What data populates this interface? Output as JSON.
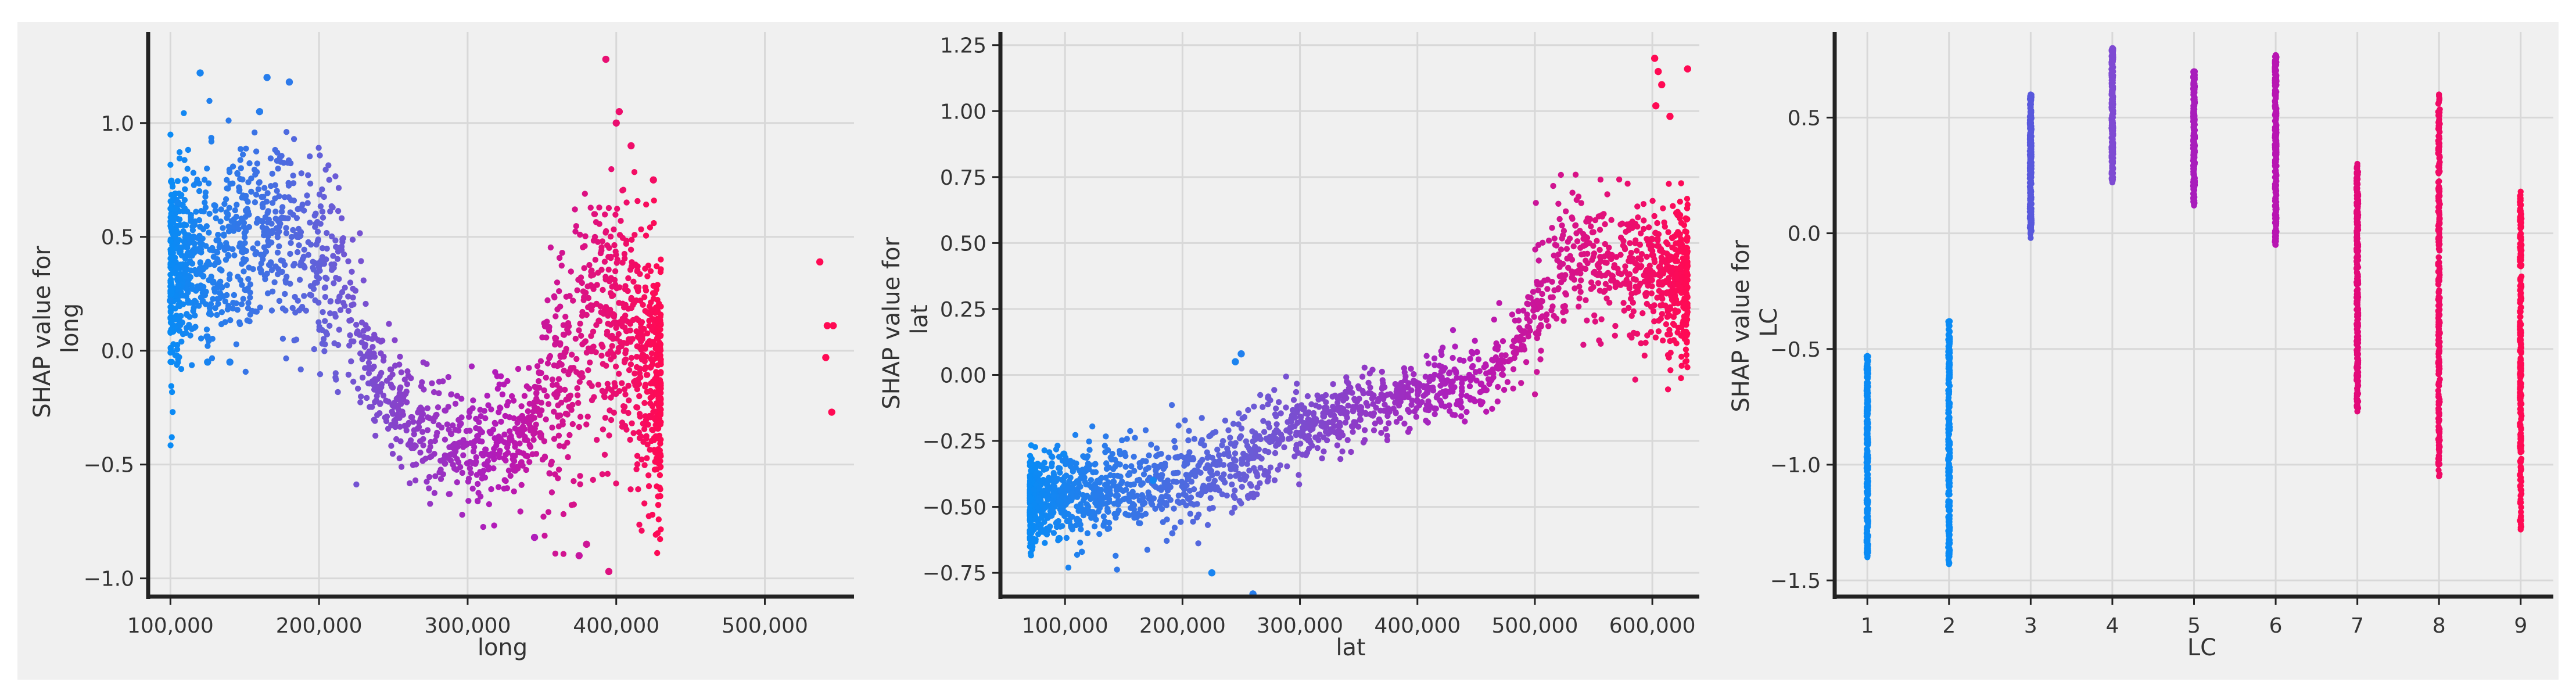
{
  "figure": {
    "background_color": "#f0f0f0",
    "plot_background_color": "#f0f0f0",
    "grid_color": "#d8d8d8",
    "axis_color": "#222222",
    "colormap": [
      "#0a8bf5",
      "#6a5cd6",
      "#b31ab8",
      "#ff0a54"
    ]
  },
  "chart_data": [
    {
      "type": "scatter",
      "title": "",
      "xlabel": "long",
      "ylabel": "SHAP value for\nlong",
      "xlim": [
        85000,
        560000
      ],
      "ylim": [
        -1.08,
        1.4
      ],
      "xticks": [
        100000,
        200000,
        300000,
        400000,
        500000
      ],
      "xtick_labels": [
        "100,000",
        "200,000",
        "300,000",
        "400,000",
        "500,000"
      ],
      "yticks": [
        -1.0,
        -0.5,
        0.0,
        0.5,
        1.0
      ],
      "ytick_labels": [
        "−1.0",
        "−0.5",
        "0.0",
        "0.5",
        "1.0"
      ],
      "grid": true,
      "color_by": "feature value (blue = low, pink = high)",
      "trend": [
        [
          100000,
          0.35
        ],
        [
          150000,
          0.45
        ],
        [
          180000,
          0.5
        ],
        [
          210000,
          0.3
        ],
        [
          240000,
          -0.15
        ],
        [
          270000,
          -0.35
        ],
        [
          300000,
          -0.45
        ],
        [
          330000,
          -0.4
        ],
        [
          360000,
          -0.15
        ],
        [
          380000,
          0.1
        ],
        [
          400000,
          0.15
        ],
        [
          430000,
          -0.2
        ]
      ],
      "points": [
        {
          "x": 120000,
          "y": 1.22,
          "c": 0.05
        },
        {
          "x": 165000,
          "y": 1.2,
          "c": 0.1
        },
        {
          "x": 180000,
          "y": 1.18,
          "c": 0.12
        },
        {
          "x": 160000,
          "y": 1.05,
          "c": 0.1
        },
        {
          "x": 110000,
          "y": 0.75,
          "c": 0.05
        },
        {
          "x": 100000,
          "y": 0.22,
          "c": 0.02
        },
        {
          "x": 105000,
          "y": 0.65,
          "c": 0.03
        },
        {
          "x": 125000,
          "y": -0.05,
          "c": 0.05
        },
        {
          "x": 140000,
          "y": -0.05,
          "c": 0.08
        },
        {
          "x": 393000,
          "y": 1.28,
          "c": 0.9
        },
        {
          "x": 402000,
          "y": 1.05,
          "c": 0.92
        },
        {
          "x": 400000,
          "y": 1.0,
          "c": 0.91
        },
        {
          "x": 410000,
          "y": 0.9,
          "c": 0.93
        },
        {
          "x": 375000,
          "y": -0.9,
          "c": 0.75
        },
        {
          "x": 395000,
          "y": -0.97,
          "c": 0.85
        },
        {
          "x": 380000,
          "y": -0.85,
          "c": 0.78
        },
        {
          "x": 345000,
          "y": -0.82,
          "c": 0.65
        },
        {
          "x": 425000,
          "y": 0.75,
          "c": 0.95
        },
        {
          "x": 537000,
          "y": 0.39,
          "c": 1.0
        },
        {
          "x": 542000,
          "y": 0.11,
          "c": 1.0
        },
        {
          "x": 546000,
          "y": 0.11,
          "c": 1.0
        },
        {
          "x": 541000,
          "y": -0.03,
          "c": 1.0
        },
        {
          "x": 545000,
          "y": -0.27,
          "c": 1.0
        }
      ]
    },
    {
      "type": "scatter",
      "title": "",
      "xlabel": "lat",
      "ylabel": "SHAP value for\nlat",
      "xlim": [
        45000,
        640000
      ],
      "ylim": [
        -0.84,
        1.3
      ],
      "xticks": [
        100000,
        200000,
        300000,
        400000,
        500000,
        600000
      ],
      "xtick_labels": [
        "100,000",
        "200,000",
        "300,000",
        "400,000",
        "500,000",
        "600,000"
      ],
      "yticks": [
        -0.75,
        -0.5,
        -0.25,
        0.0,
        0.25,
        0.5,
        0.75,
        1.0,
        1.25
      ],
      "ytick_labels": [
        "−0.75",
        "−0.50",
        "−0.25",
        "0.00",
        "0.25",
        "0.50",
        "0.75",
        "1.00",
        "1.25"
      ],
      "grid": true,
      "color_by": "feature value (blue = low, pink = high)",
      "trend": [
        [
          70000,
          -0.48
        ],
        [
          100000,
          -0.45
        ],
        [
          180000,
          -0.42
        ],
        [
          230000,
          -0.38
        ],
        [
          260000,
          -0.3
        ],
        [
          300000,
          -0.2
        ],
        [
          350000,
          -0.13
        ],
        [
          400000,
          -0.08
        ],
        [
          450000,
          -0.02
        ],
        [
          480000,
          0.08
        ],
        [
          500000,
          0.25
        ],
        [
          530000,
          0.45
        ],
        [
          560000,
          0.42
        ],
        [
          600000,
          0.4
        ],
        [
          630000,
          0.35
        ]
      ],
      "points": [
        {
          "x": 602000,
          "y": 1.2,
          "c": 1.0
        },
        {
          "x": 605000,
          "y": 1.15,
          "c": 1.0
        },
        {
          "x": 630000,
          "y": 1.16,
          "c": 1.0
        },
        {
          "x": 608000,
          "y": 1.1,
          "c": 1.0
        },
        {
          "x": 603000,
          "y": 1.02,
          "c": 1.0
        },
        {
          "x": 615000,
          "y": 0.98,
          "c": 1.0
        },
        {
          "x": 260000,
          "y": -0.83,
          "c": 0.1
        },
        {
          "x": 250000,
          "y": 0.08,
          "c": 0.08
        },
        {
          "x": 225000,
          "y": -0.75,
          "c": 0.05
        },
        {
          "x": 245000,
          "y": 0.05,
          "c": 0.06
        },
        {
          "x": 99000,
          "y": -0.3,
          "c": 0.02
        },
        {
          "x": 95000,
          "y": -0.62,
          "c": 0.02
        },
        {
          "x": 175000,
          "y": -0.4,
          "c": 0.03
        }
      ]
    },
    {
      "type": "scatter",
      "title": "",
      "xlabel": "LC",
      "ylabel": "SHAP value for\nLC",
      "xlim": [
        0.6,
        9.4
      ],
      "ylim": [
        -1.57,
        0.87
      ],
      "xticks": [
        1,
        2,
        3,
        4,
        5,
        6,
        7,
        8,
        9
      ],
      "xtick_labels": [
        "1",
        "2",
        "3",
        "4",
        "5",
        "6",
        "7",
        "8",
        "9"
      ],
      "yticks": [
        -1.5,
        -1.0,
        -0.5,
        0.0,
        0.5
      ],
      "ytick_labels": [
        "−1.5",
        "−1.0",
        "−0.5",
        "0.0",
        "0.5"
      ],
      "grid": true,
      "color_by": "feature value (blue = low, pink = high)",
      "columns": [
        {
          "x": 1,
          "ymin": -1.4,
          "ymax": -0.53,
          "color": "#0a8bf5"
        },
        {
          "x": 2,
          "ymin": -1.43,
          "ymax": -0.38,
          "color": "#0a8bf5"
        },
        {
          "x": 3,
          "ymin": -0.02,
          "ymax": 0.6,
          "color": "#5858dc"
        },
        {
          "x": 4,
          "ymin": 0.22,
          "ymax": 0.8,
          "color": "#7e4ad2"
        },
        {
          "x": 5,
          "ymin": 0.12,
          "ymax": 0.7,
          "color": "#a81dbb"
        },
        {
          "x": 6,
          "ymin": -0.05,
          "ymax": 0.77,
          "color": "#b815b2"
        },
        {
          "x": 7,
          "ymin": -0.77,
          "ymax": 0.3,
          "color": "#e20a7a"
        },
        {
          "x": 8,
          "ymin": -1.05,
          "ymax": 0.6,
          "color": "#f00a66"
        },
        {
          "x": 9,
          "ymin": -1.28,
          "ymax": 0.18,
          "color": "#ff0a54"
        }
      ]
    }
  ]
}
